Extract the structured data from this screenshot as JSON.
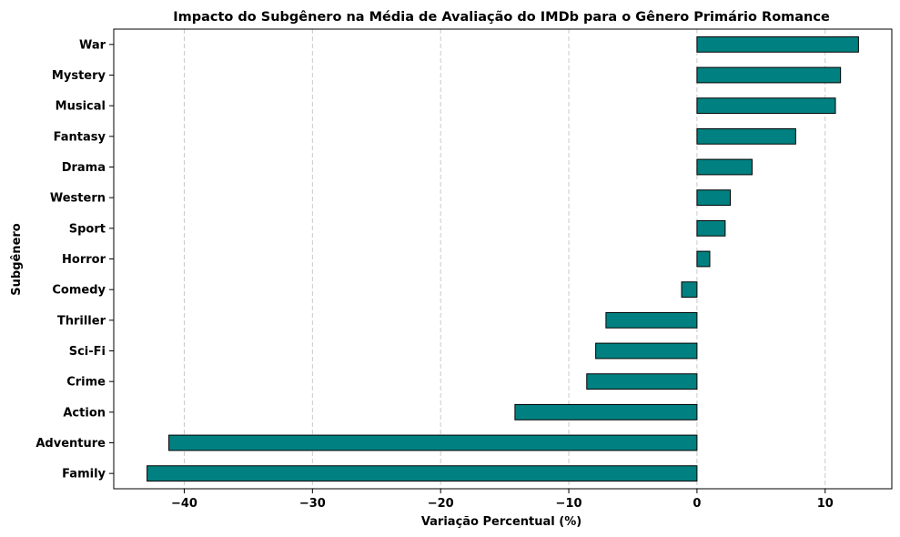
{
  "chart_data": {
    "type": "bar",
    "orientation": "horizontal",
    "title": "Impacto do Subgênero na Média de Avaliação do IMDb para o Gênero Primário Romance",
    "xlabel": "Variação Percentual (%)",
    "ylabel": "Subgênero",
    "xlim": [
      -45.5,
      15.2
    ],
    "xticks": [
      -40,
      -30,
      -20,
      -10,
      0,
      10
    ],
    "xtick_labels": [
      "−40",
      "−30",
      "−20",
      "−10",
      "0",
      "10"
    ],
    "grid": "x-dashed",
    "bar_color": "#008080",
    "categories": [
      "War",
      "Mystery",
      "Musical",
      "Fantasy",
      "Drama",
      "Western",
      "Sport",
      "Horror",
      "Comedy",
      "Thriller",
      "Sci-Fi",
      "Crime",
      "Action",
      "Adventure",
      "Family"
    ],
    "values": [
      12.6,
      11.2,
      10.8,
      7.7,
      4.3,
      2.6,
      2.2,
      1.0,
      -1.2,
      -7.1,
      -7.9,
      -8.6,
      -14.2,
      -41.2,
      -42.9
    ]
  }
}
